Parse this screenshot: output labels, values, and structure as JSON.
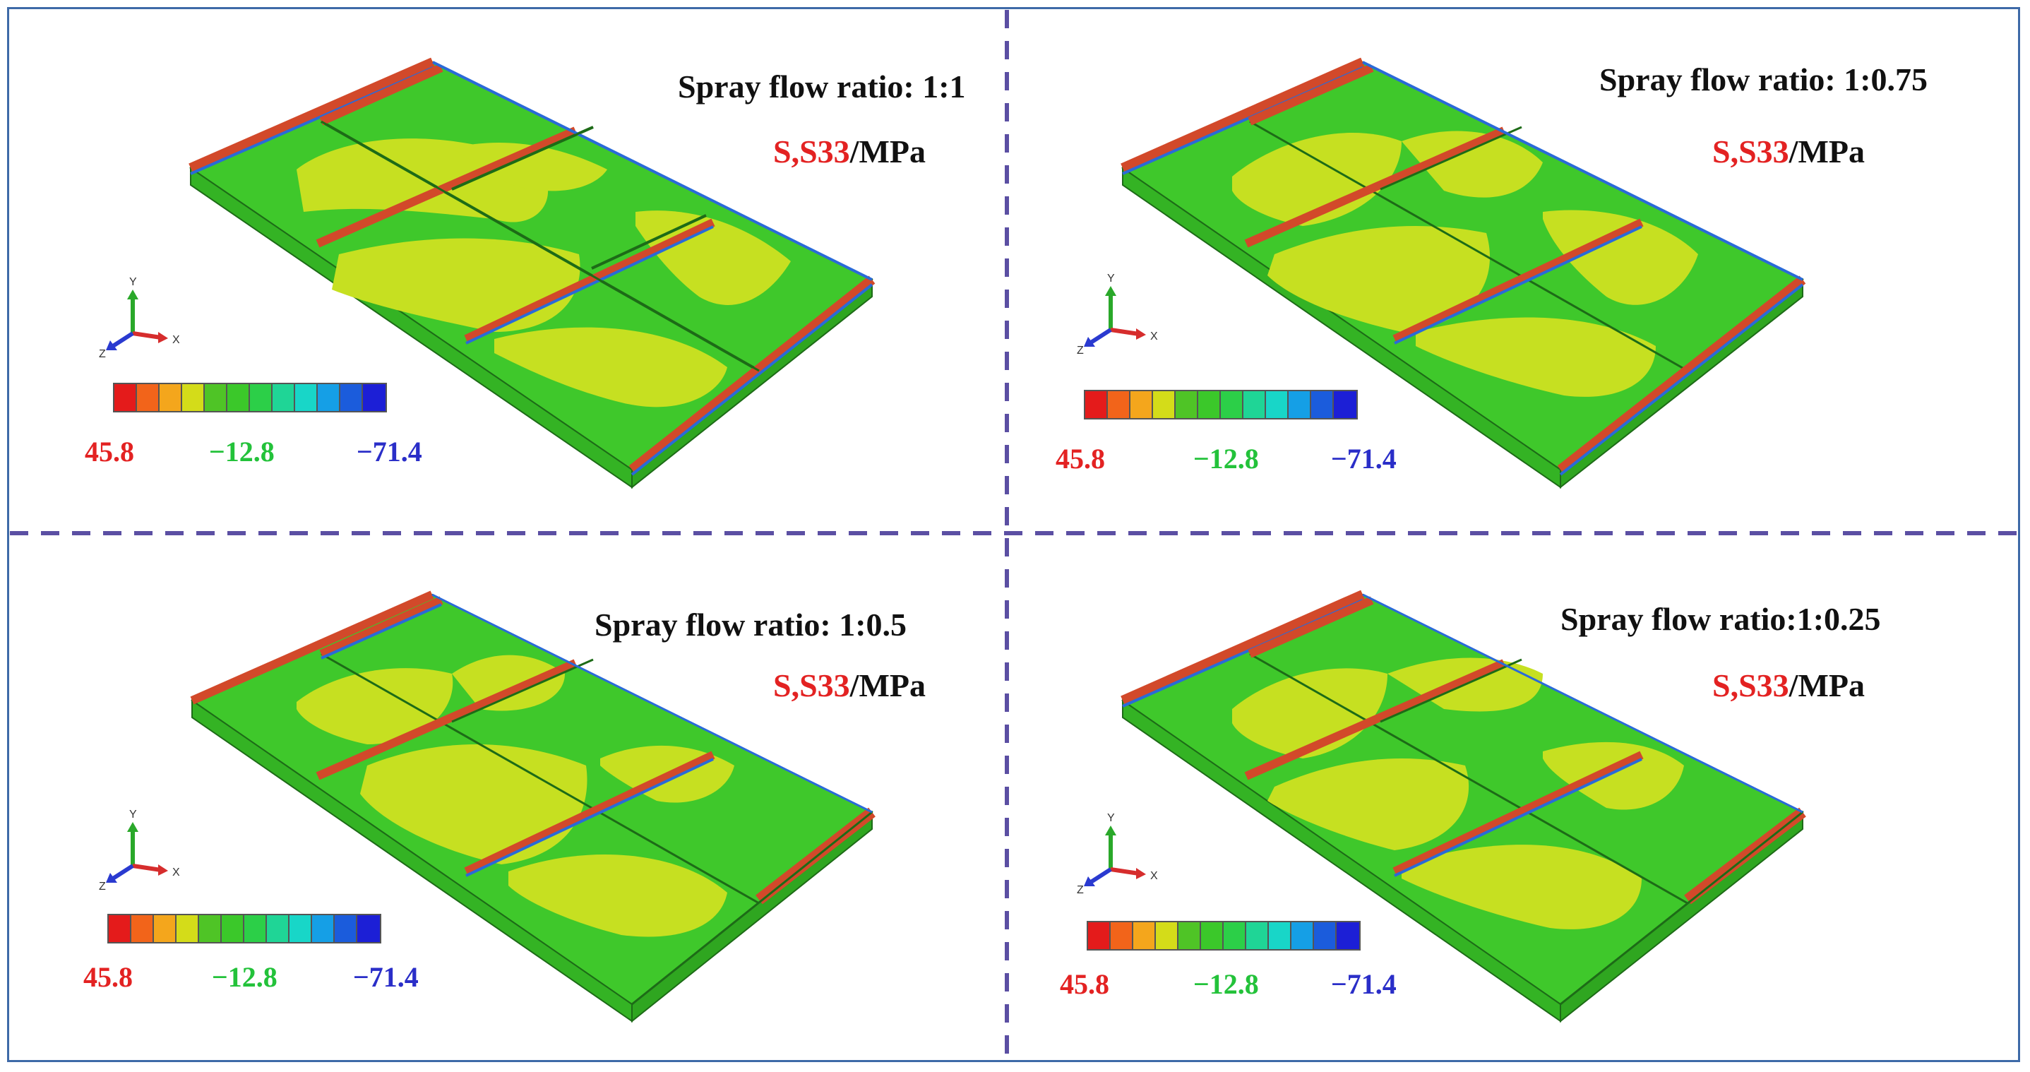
{
  "panels": [
    {
      "title": "Spray flow ratio: 1:1",
      "variable": "S,S33",
      "unit": "/MPa"
    },
    {
      "title": "Spray flow ratio: 1:0.75",
      "variable": "S,S33",
      "unit": "/MPa"
    },
    {
      "title": "Spray flow ratio: 1:0.5",
      "variable": "S,S33",
      "unit": "/MPa"
    },
    {
      "title": "Spray flow ratio:1:0.25",
      "variable": "S,S33",
      "unit": "/MPa"
    }
  ],
  "legend": {
    "max": "45.8",
    "mid": "−12.8",
    "min": "−71.4",
    "colors": [
      "#e41b1b",
      "#f2641a",
      "#f4a61c",
      "#d4dc19",
      "#4fc426",
      "#3bc82a",
      "#2ccf48",
      "#1fd596",
      "#18d6c8",
      "#159fe6",
      "#1b5cdc",
      "#1c1fd6"
    ],
    "max_color": "#e32222",
    "mid_color": "#23c23a",
    "min_color": "#2a2ec8"
  },
  "triad": {
    "y": "Y",
    "x": "X",
    "z": "Z"
  },
  "colors": {
    "plate_green": "#3fc82b",
    "plate_yellow": "#c6e021",
    "stress_red": "#d2492a",
    "edge_blue": "#2a6ad8",
    "divider": "#5b4fa3"
  }
}
